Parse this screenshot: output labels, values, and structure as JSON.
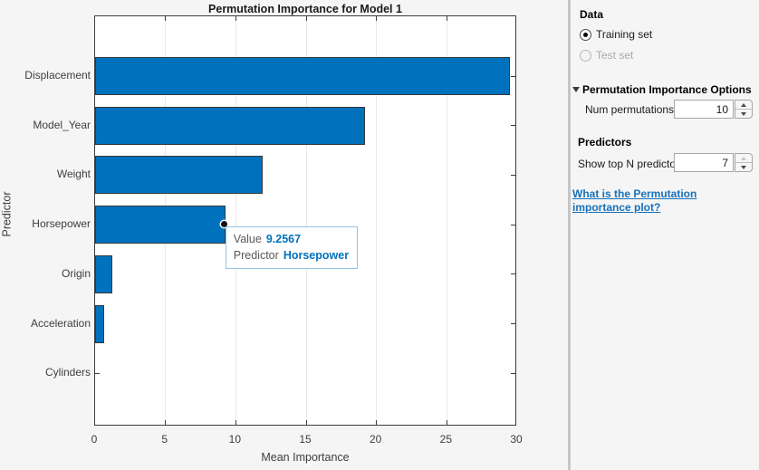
{
  "chart_data": {
    "type": "bar",
    "orientation": "horizontal",
    "title": "Permutation Importance for Model 1",
    "xlabel": "Mean Importance",
    "ylabel": "Predictor",
    "categories": [
      "Displacement",
      "Model_Year",
      "Weight",
      "Horsepower",
      "Origin",
      "Acceleration",
      "Cylinders"
    ],
    "values": [
      29.5,
      19.2,
      11.9,
      9.2567,
      1.25,
      0.65,
      0
    ],
    "xlim": [
      0,
      30
    ],
    "xticks": [
      0,
      5,
      10,
      15,
      20,
      25,
      30
    ],
    "grid": "vertical-only",
    "legend": "none",
    "bar_color": "#0072bd"
  },
  "tooltip": {
    "value_label": "Value",
    "value": "9.2567",
    "predictor_label": "Predictor",
    "predictor": "Horsepower"
  },
  "panel": {
    "data_section": {
      "title": "Data",
      "training_option": {
        "label": "Training set",
        "selected": true,
        "enabled": true
      },
      "test_option": {
        "label": "Test set",
        "selected": false,
        "enabled": false
      }
    },
    "options_section": {
      "title": "Permutation Importance Options",
      "expanded": true,
      "num_permutations_label": "Num permutations",
      "num_permutations_value": "10"
    },
    "predictors_section": {
      "title": "Predictors",
      "show_top_label": "Show top N predictors",
      "show_top_value": "7"
    },
    "help_link": "What is the Permutation importance plot?"
  },
  "colors": {
    "bar": "#0072bd",
    "accent_blue": "#0072bd",
    "link_blue": "#1771ba",
    "background": "#f5f5f5",
    "plot_background": "#ffffff",
    "gridline": "#e8e8e8",
    "axis": "#3c3c3c",
    "tooltip_border": "#93c4e6"
  }
}
